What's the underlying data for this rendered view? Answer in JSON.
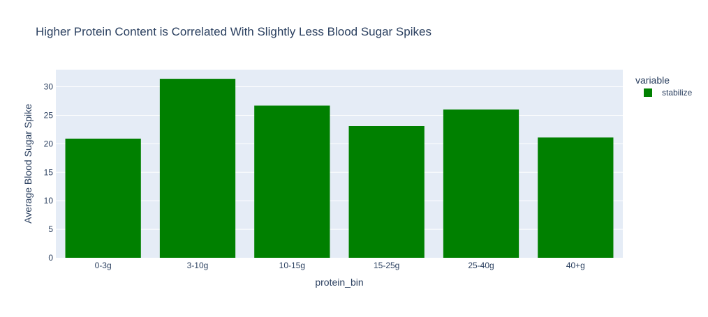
{
  "chart_data": {
    "type": "bar",
    "title": "Higher Protein Content is Correlated With Slightly Less Blood Sugar Spikes",
    "xlabel": "protein_bin",
    "ylabel": "Average Blood Sugar Spike",
    "categories": [
      "0-3g",
      "3-10g",
      "10-15g",
      "15-25g",
      "25-40g",
      "40+g"
    ],
    "series": [
      {
        "name": "stabilize",
        "values": [
          20.9,
          31.4,
          26.7,
          23.1,
          26.0,
          21.1
        ],
        "color": "#008000"
      }
    ],
    "ylim": [
      0,
      33
    ],
    "yticks": [
      0,
      5,
      10,
      15,
      20,
      25,
      30
    ],
    "grid": true,
    "legend": {
      "title": "variable",
      "placement": "top-right"
    },
    "colors": {
      "plot_bg": "#E5ECF6",
      "grid": "#ffffff",
      "text": "#2a3f5f"
    }
  }
}
